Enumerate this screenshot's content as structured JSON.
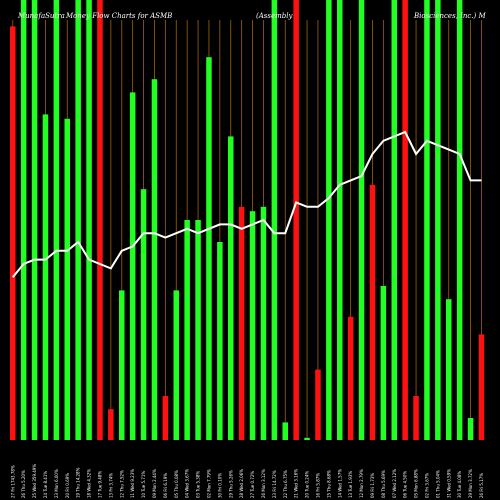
{
  "header": {
    "site": "MunafaSutra",
    "chart_name": "Money Flow  Charts for ASMB",
    "company": "(Assembly",
    "company_rest": "Biosciences, Inc.) M"
  },
  "colors": {
    "background": "#000000",
    "up": "#22ff22",
    "down": "#ff1111",
    "line": "#ffffff",
    "grid": "#a0620a"
  },
  "chart_data": {
    "type": "bar",
    "title": "MunafaSutra Money Flow Charts for ASMB (Assembly Biosciences, Inc.) M",
    "categories": [
      "27 Fri 1743.78%",
      "26 Thu 5.20%",
      "25 Wed 359.49%",
      "24 Tue 8.41%",
      "23 Mon 6.00%",
      "20 Fri 0.69%",
      "19 Thu 14.28%",
      "18 Wed 4.32%",
      "17 Tue 9.48%",
      "13 Fri 3.74%",
      "12 Thu 7.52%",
      "11 Wed 9.23%",
      "10 Tue 5.71%",
      "09 Mon 2.44%",
      "06 Fri 6.19%",
      "05 Thu 0.08%",
      "04 Wed 3.67%",
      "03 Tue 5.38%",
      "02 Mon 7.79%",
      "30 Fri 0.10%",
      "29 Thu 5.26%",
      "28 Wed 2.06%",
      "27 Tue 0.72%",
      "26 Mon 3.12%",
      "23 Fri 14.72%",
      "22 Thu 6.75%",
      "21 Wed 3.16%",
      "20 Tue 0.24%",
      "16 Fri 5.87%",
      "15 Thu 8.68%",
      "14 Wed 1.57%",
      "13 Tue 1.93%",
      "12 Mon 2.79%",
      "09 Fri 1.73%",
      "08 Thu 5.69%",
      "07 Wed 2.12%",
      "06 Tue 4.50%",
      "05 Mon 6.88%",
      "02 Fri 3.67%",
      "01 Thu 5.04%",
      "31 Wed 0.59%",
      "30 Tue 4.08%",
      "29 Mon 3.72%",
      "26 Fri 5.17%"
    ],
    "bar_colors": [
      "red",
      "green",
      "green",
      "green",
      "green",
      "green",
      "green",
      "green",
      "red",
      "red",
      "green",
      "green",
      "green",
      "green",
      "red",
      "green",
      "green",
      "green",
      "green",
      "green",
      "green",
      "red",
      "green",
      "green",
      "green",
      "green",
      "red",
      "green",
      "red",
      "green",
      "green",
      "red",
      "green",
      "red",
      "green",
      "green",
      "red",
      "red",
      "green",
      "green",
      "green",
      "green",
      "green",
      "red"
    ],
    "bar_values": [
      94,
      100,
      100,
      74,
      100,
      73,
      100,
      100,
      100,
      7,
      34,
      79,
      57,
      82,
      10,
      34,
      50,
      50,
      87,
      45,
      69,
      53,
      52,
      53,
      100,
      4,
      100,
      0.5,
      16,
      100,
      100,
      28,
      100,
      58,
      35,
      100,
      100,
      10,
      100,
      100,
      32,
      100,
      5,
      24
    ],
    "line_values": [
      37,
      40,
      41,
      41,
      43,
      43,
      45,
      41,
      40,
      39,
      43,
      44,
      47,
      47,
      46,
      47,
      48,
      47,
      48,
      49,
      49,
      48,
      49,
      50,
      47,
      47,
      54,
      53,
      53,
      55,
      58,
      59,
      60,
      65,
      68,
      69,
      70,
      65,
      68,
      67,
      66,
      65,
      59,
      59
    ],
    "ylim": [
      0,
      100
    ]
  }
}
